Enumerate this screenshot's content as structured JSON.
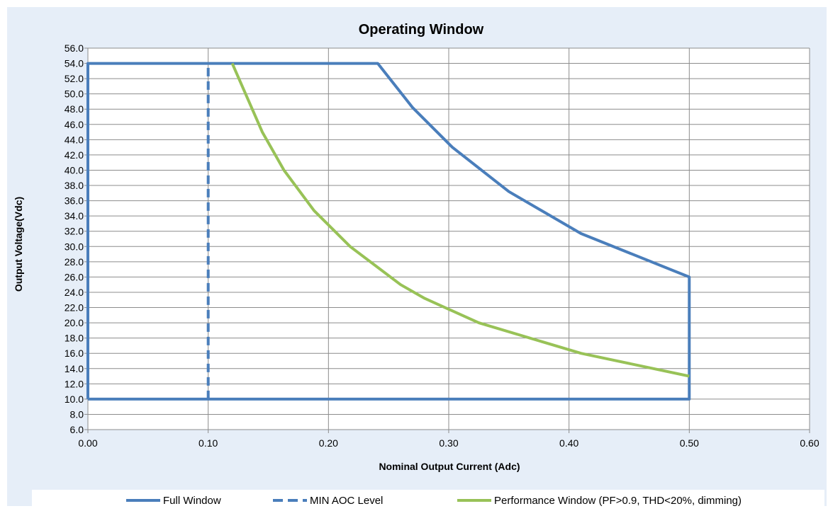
{
  "colors": {
    "background": "#e6eef8",
    "plot_background": "#ffffff",
    "grid": "#8c8c8c",
    "full_window": "#4a7ebb",
    "min_aoc": "#4a7ebb",
    "performance_window": "#98c257"
  },
  "chart_data": {
    "type": "line",
    "title": "Operating Window",
    "xlabel": "Nominal Output Current (Adc)",
    "ylabel": "Output Voltage(Vdc)",
    "xlim": [
      0,
      0.6
    ],
    "ylim": [
      6,
      56
    ],
    "xticks": [
      "0.00",
      "0.10",
      "0.20",
      "0.30",
      "0.40",
      "0.50",
      "0.60"
    ],
    "yticks": [
      "6.0",
      "8.0",
      "10.0",
      "12.0",
      "14.0",
      "16.0",
      "18.0",
      "20.0",
      "22.0",
      "24.0",
      "26.0",
      "28.0",
      "30.0",
      "32.0",
      "34.0",
      "36.0",
      "38.0",
      "40.0",
      "42.0",
      "44.0",
      "46.0",
      "48.0",
      "50.0",
      "52.0",
      "54.0",
      "56.0"
    ],
    "grid": true,
    "legend_position": "bottom",
    "series": [
      {
        "name": "Full Window",
        "style": "solid",
        "points": [
          [
            0.0,
            10.0
          ],
          [
            0.0,
            54.0
          ],
          [
            0.241,
            54.0
          ],
          [
            0.27,
            48.2
          ],
          [
            0.303,
            43.0
          ],
          [
            0.35,
            37.2
          ],
          [
            0.41,
            31.7
          ],
          [
            0.5,
            26.0
          ],
          [
            0.5,
            10.0
          ],
          [
            0.0,
            10.0
          ]
        ]
      },
      {
        "name": "MIN AOC Level",
        "style": "dashed",
        "points": [
          [
            0.1,
            10.0
          ],
          [
            0.1,
            54.0
          ]
        ]
      },
      {
        "name": "Performance Window (PF>0.9, THD<20%, dimming)",
        "style": "solid",
        "points": [
          [
            0.12,
            54.0
          ],
          [
            0.145,
            45.0
          ],
          [
            0.163,
            40.0
          ],
          [
            0.188,
            34.7
          ],
          [
            0.218,
            30.0
          ],
          [
            0.26,
            25.0
          ],
          [
            0.28,
            23.2
          ],
          [
            0.325,
            20.0
          ],
          [
            0.41,
            16.0
          ],
          [
            0.5,
            13.0
          ]
        ]
      }
    ]
  }
}
